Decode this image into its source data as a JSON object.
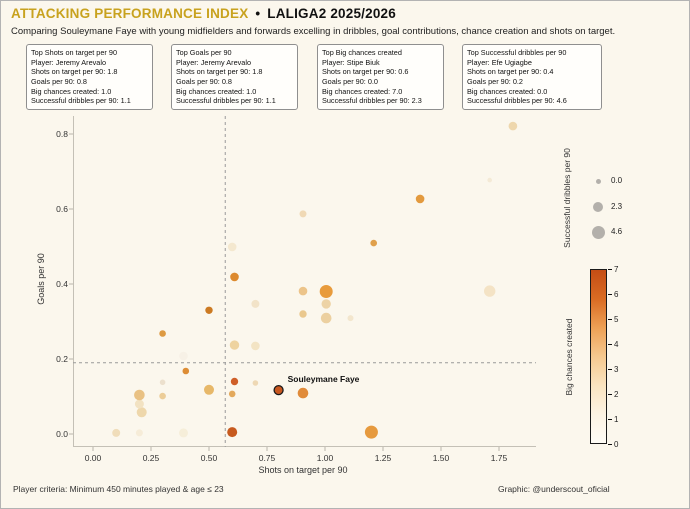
{
  "header": {
    "title_main": "ATTACKING PERFORMANCE INDEX",
    "title_sep": "•",
    "title_right": "LALIGA2 2025/2026",
    "subtitle": "Comparing Souleymane Faye with young midfielders and forwards excelling in dribbles, goal contributions, chance creation and shots on target."
  },
  "stat_boxes": [
    {
      "title": "Top Shots on target per 90",
      "lines": [
        "Player: Jeremy Arevalo",
        "Shots on target per 90: 1.8",
        "Goals per 90: 0.8",
        "Big chances created: 1.0",
        "Successful dribbles per 90: 1.1"
      ]
    },
    {
      "title": "Top Goals per 90",
      "lines": [
        "Player: Jeremy Arevalo",
        "Shots on target per 90: 1.8",
        "Goals per 90: 0.8",
        "Big chances created: 1.0",
        "Successful dribbles per 90: 1.1"
      ]
    },
    {
      "title": "Top Big chances created",
      "lines": [
        "Player: Stipe Biuk",
        "Shots on target per 90: 0.6",
        "Goals per 90: 0.0",
        "Big chances created: 7.0",
        "Successful dribbles per 90: 2.3"
      ]
    },
    {
      "title": "Top Successful dribbles per 90",
      "lines": [
        "Player: Efe Ugiagbe",
        "Shots on target per 90: 0.4",
        "Goals per 90: 0.2",
        "Big chances created: 0.0",
        "Successful dribbles per 90: 4.6"
      ]
    }
  ],
  "chart_data": {
    "type": "scatter",
    "xlabel": "Shots on target per 90",
    "ylabel": "Goals per 90",
    "x_ticks": [
      "0.00",
      "0.25",
      "0.50",
      "0.75",
      "1.00",
      "1.25",
      "1.50",
      "1.75"
    ],
    "y_ticks": [
      "0.0",
      "0.2",
      "0.4",
      "0.6",
      "0.8"
    ],
    "xlim": [
      -0.09,
      1.91
    ],
    "ylim": [
      -0.035,
      0.85
    ],
    "grid": "off",
    "reference_lines": {
      "x": 0.57,
      "y": 0.19,
      "style": "dashed",
      "color": "#9a9a9a"
    },
    "size_legend": {
      "label": "Successful dribbles per 90",
      "circle_color": "#b3b0ab",
      "items": [
        {
          "value": "0.0",
          "r": 2.5
        },
        {
          "value": "2.3",
          "r": 5
        },
        {
          "value": "4.6",
          "r": 6.5
        }
      ]
    },
    "colorbar": {
      "label": "Big chances created",
      "ticks": [
        "7",
        "6",
        "5",
        "4",
        "3",
        "2",
        "1",
        "0"
      ],
      "gradient_top_to_bottom": [
        "#c44d15",
        "#d96b23",
        "#eda055",
        "#f5c88f",
        "#fae4c0",
        "#fdf3e3",
        "#fefcf6"
      ]
    },
    "highlight_label": "Souleymane Faye",
    "points": [
      {
        "x": 0.1,
        "y": 0.003,
        "r": 4,
        "fill": "#f0ddba"
      },
      {
        "x": 0.2,
        "y": 0.003,
        "r": 3.5,
        "fill": "#f6ecd8"
      },
      {
        "x": 0.39,
        "y": 0.003,
        "r": 4.5,
        "fill": "#f6eed9"
      },
      {
        "x": 0.6,
        "y": 0.005,
        "r": 5,
        "fill": "#c75a1e"
      },
      {
        "x": 1.2,
        "y": 0.005,
        "r": 6.5,
        "fill": "#e69a3e"
      },
      {
        "x": 0.21,
        "y": 0.058,
        "r": 5,
        "fill": "#eed7ab"
      },
      {
        "x": 0.2,
        "y": 0.08,
        "r": 4.5,
        "fill": "#f2e2c2"
      },
      {
        "x": 0.2,
        "y": 0.104,
        "r": 5.3,
        "fill": "#e9c183"
      },
      {
        "x": 0.3,
        "y": 0.101,
        "r": 3.3,
        "fill": "#eccd98"
      },
      {
        "x": 0.3,
        "y": 0.138,
        "r": 2.8,
        "fill": "#ece0cd"
      },
      {
        "x": 0.3,
        "y": 0.268,
        "r": 3.3,
        "fill": "#dd9a42"
      },
      {
        "x": 0.39,
        "y": 0.208,
        "r": 4.3,
        "fill": "#f7f1e6"
      },
      {
        "x": 0.4,
        "y": 0.168,
        "r": 3.3,
        "fill": "#dd8d35"
      },
      {
        "x": 0.5,
        "y": 0.118,
        "r": 5,
        "fill": "#e7b869"
      },
      {
        "x": 0.5,
        "y": 0.33,
        "r": 3.7,
        "fill": "#cc7a22"
      },
      {
        "x": 0.6,
        "y": 0.107,
        "r": 3.3,
        "fill": "#e3a95c"
      },
      {
        "x": 0.61,
        "y": 0.14,
        "r": 3.7,
        "fill": "#cf5f28"
      },
      {
        "x": 0.61,
        "y": 0.237,
        "r": 4.7,
        "fill": "#eed3a0"
      },
      {
        "x": 0.7,
        "y": 0.235,
        "r": 4.3,
        "fill": "#f3e4c4"
      },
      {
        "x": 0.7,
        "y": 0.136,
        "r": 2.8,
        "fill": "#eed8b4"
      },
      {
        "x": 0.7,
        "y": 0.347,
        "r": 4,
        "fill": "#f2e3c8"
      },
      {
        "x": 0.61,
        "y": 0.419,
        "r": 4.3,
        "fill": "#dd8a2e"
      },
      {
        "x": 0.6,
        "y": 0.499,
        "r": 4.3,
        "fill": "#f4e8cf"
      },
      {
        "x": 0.905,
        "y": 0.587,
        "r": 3.5,
        "fill": "#f0d9b5"
      },
      {
        "x": 0.905,
        "y": 0.32,
        "r": 3.7,
        "fill": "#eac88e"
      },
      {
        "x": 0.905,
        "y": 0.381,
        "r": 4.3,
        "fill": "#ecc48a"
      },
      {
        "x": 1.005,
        "y": 0.309,
        "r": 5.3,
        "fill": "#ecd0a0"
      },
      {
        "x": 1.005,
        "y": 0.347,
        "r": 4.7,
        "fill": "#edd3a6"
      },
      {
        "x": 1.005,
        "y": 0.38,
        "r": 6.5,
        "fill": "#e89b3c"
      },
      {
        "x": 1.11,
        "y": 0.309,
        "r": 3,
        "fill": "#f3e6cd"
      },
      {
        "x": 0.905,
        "y": 0.109,
        "r": 5.3,
        "fill": "#e08b3a"
      },
      {
        "x": 0.8,
        "y": 0.117,
        "r": 4.5,
        "fill": "#c8571f",
        "stroke": "#1a1a1a",
        "label": "Souleymane Faye"
      },
      {
        "x": 1.21,
        "y": 0.509,
        "r": 3.3,
        "fill": "#e0a04b"
      },
      {
        "x": 1.41,
        "y": 0.627,
        "r": 4.3,
        "fill": "#e39a3e"
      },
      {
        "x": 1.71,
        "y": 0.677,
        "r": 2.3,
        "fill": "#f4ead6"
      },
      {
        "x": 1.71,
        "y": 0.381,
        "r": 5.7,
        "fill": "#f4e3c5"
      },
      {
        "x": 1.81,
        "y": 0.821,
        "r": 4.3,
        "fill": "#eed7ad"
      }
    ]
  },
  "footer": {
    "left": "Player criteria: Minimum 450 minutes played & age ≤ 23",
    "right": "Graphic: @underscout_oficial"
  }
}
